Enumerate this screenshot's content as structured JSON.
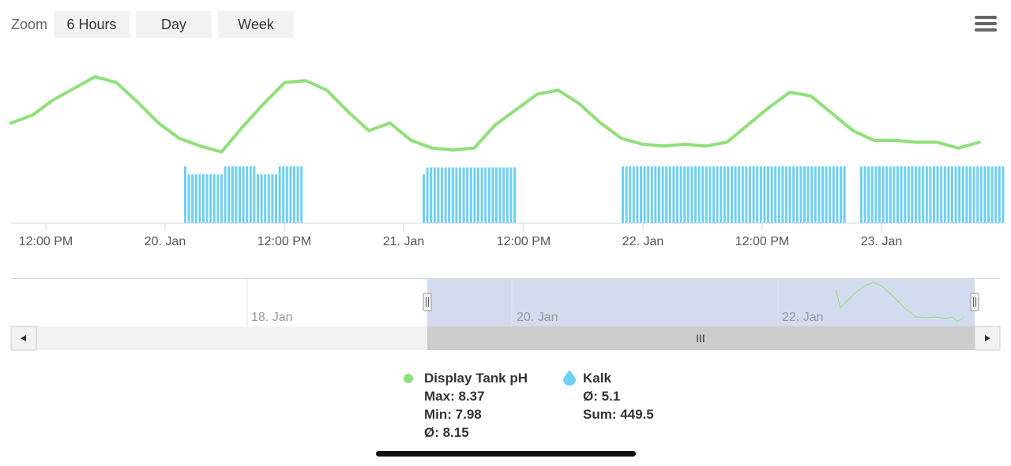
{
  "zoom": {
    "label": "Zoom",
    "buttons": [
      "6 Hours",
      "Day",
      "Week"
    ]
  },
  "colors": {
    "ph": "#8fe07a",
    "kalk": "#6fd0f4",
    "navigator_mask": "#d3dbee",
    "scrollbar_track": "#f2f2f2",
    "scrollbar_thumb": "#cccccc"
  },
  "icons": {
    "menu": "hamburger-menu-icon",
    "ph_marker": "circle-icon",
    "kalk_marker": "water-drop-icon",
    "scroll_left": "arrow-left-icon",
    "scroll_right": "arrow-right-icon"
  },
  "chart_data": {
    "type": "line",
    "x_tick_labels": [
      "12:00 PM",
      "20. Jan",
      "12:00 PM",
      "21. Jan",
      "12:00 PM",
      "22. Jan",
      "12:00 PM",
      "23. Jan"
    ],
    "grid": false,
    "legend_position": "bottom",
    "series": [
      {
        "name": "Display Tank pH",
        "type": "line",
        "color": "#8fe07a",
        "y_shape": [
          8.13,
          8.17,
          8.25,
          8.31,
          8.37,
          8.34,
          8.24,
          8.13,
          8.05,
          8.01,
          7.98,
          8.11,
          8.23,
          8.34,
          8.35,
          8.3,
          8.19,
          8.09,
          8.13,
          8.04,
          8.0,
          7.99,
          8.0,
          8.12,
          8.2,
          8.28,
          8.3,
          8.23,
          8.13,
          8.05,
          8.02,
          8.01,
          8.02,
          8.01,
          8.03,
          8.12,
          8.21,
          8.29,
          8.27,
          8.18,
          8.09,
          8.04,
          8.04,
          8.03,
          8.03,
          8.0,
          8.03
        ]
      },
      {
        "name": "Kalk",
        "type": "column",
        "color": "#6fd0f4",
        "groups": [
          {
            "pattern": [
              1,
              0.86,
              0.86,
              0.86,
              0.86,
              0.86,
              0.86,
              0.86,
              0.86,
              0.86,
              0.86,
              1,
              1,
              1,
              1,
              1,
              1,
              1,
              1,
              1,
              0.86,
              0.86,
              0.86,
              0.86,
              0.86,
              0.86,
              1,
              1,
              1,
              1,
              1,
              1,
              1
            ]
          },
          {
            "pattern": [
              0.86,
              0.98,
              0.98,
              0.98,
              0.98,
              0.98,
              0.98,
              0.98,
              0.98,
              0.98,
              0.98,
              0.98,
              0.98,
              0.98,
              0.98,
              0.98,
              0.98,
              0.98,
              0.98,
              0.98,
              0.98,
              0.98,
              0.98,
              0.98,
              0.98,
              0.98
            ]
          },
          {
            "pattern": [
              1,
              1,
              1,
              1,
              1,
              1,
              1,
              1,
              1,
              1,
              1,
              1,
              1,
              1,
              1,
              1,
              1,
              1,
              1,
              1,
              1,
              1,
              1,
              1,
              1,
              1,
              1,
              1,
              1,
              1,
              1,
              1,
              1,
              1,
              1,
              1,
              1,
              1,
              1,
              1,
              1,
              1,
              1,
              1,
              1,
              1,
              1,
              1,
              1,
              1,
              1,
              1,
              1,
              1,
              1,
              1,
              1,
              1,
              1,
              1,
              1,
              1
            ]
          },
          {
            "pattern": [
              1,
              1,
              1,
              1,
              1,
              1,
              1,
              1,
              1,
              1,
              1,
              1,
              1,
              1,
              1,
              1,
              1,
              1,
              1,
              1,
              1,
              1,
              1,
              1,
              1,
              1,
              1,
              1,
              1,
              1,
              1,
              1,
              1,
              1,
              1,
              1,
              1,
              1,
              1,
              1
            ]
          }
        ]
      }
    ],
    "navigator": {
      "labels": [
        "18. Jan",
        "20. Jan",
        "22. Jan"
      ]
    }
  },
  "legend": {
    "ph": {
      "name": "Display Tank pH",
      "max": "Max: 8.37",
      "min": "Min: 7.98",
      "avg": "Ø: 8.15"
    },
    "kalk": {
      "name": "Kalk",
      "avg": "Ø: 5.1",
      "sum": "Sum: 449.5"
    }
  },
  "scrollbar": {
    "thumb_grip": "III"
  }
}
